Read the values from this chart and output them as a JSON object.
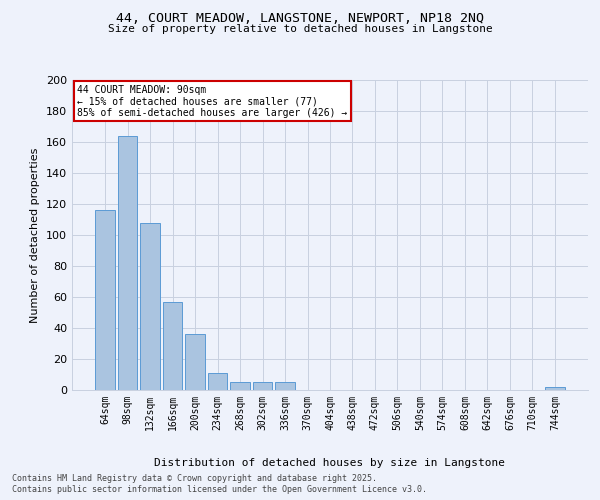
{
  "title_line1": "44, COURT MEADOW, LANGSTONE, NEWPORT, NP18 2NQ",
  "title_line2": "Size of property relative to detached houses in Langstone",
  "xlabel": "Distribution of detached houses by size in Langstone",
  "ylabel": "Number of detached properties",
  "categories": [
    "64sqm",
    "98sqm",
    "132sqm",
    "166sqm",
    "200sqm",
    "234sqm",
    "268sqm",
    "302sqm",
    "336sqm",
    "370sqm",
    "404sqm",
    "438sqm",
    "472sqm",
    "506sqm",
    "540sqm",
    "574sqm",
    "608sqm",
    "642sqm",
    "676sqm",
    "710sqm",
    "744sqm"
  ],
  "values": [
    116,
    164,
    108,
    57,
    36,
    11,
    5,
    5,
    5,
    0,
    0,
    0,
    0,
    0,
    0,
    0,
    0,
    0,
    0,
    0,
    2
  ],
  "bar_color": "#aac4e0",
  "bar_edge_color": "#5b9bd5",
  "annotation_title": "44 COURT MEADOW: 90sqm",
  "annotation_line1": "← 15% of detached houses are smaller (77)",
  "annotation_line2": "85% of semi-detached houses are larger (426) →",
  "annotation_box_facecolor": "#ffffff",
  "annotation_box_edgecolor": "#cc0000",
  "background_color": "#eef2fb",
  "grid_color": "#c8d0e0",
  "footer_line1": "Contains HM Land Registry data © Crown copyright and database right 2025.",
  "footer_line2": "Contains public sector information licensed under the Open Government Licence v3.0.",
  "ylim": [
    0,
    200
  ],
  "yticks": [
    0,
    20,
    40,
    60,
    80,
    100,
    120,
    140,
    160,
    180,
    200
  ]
}
